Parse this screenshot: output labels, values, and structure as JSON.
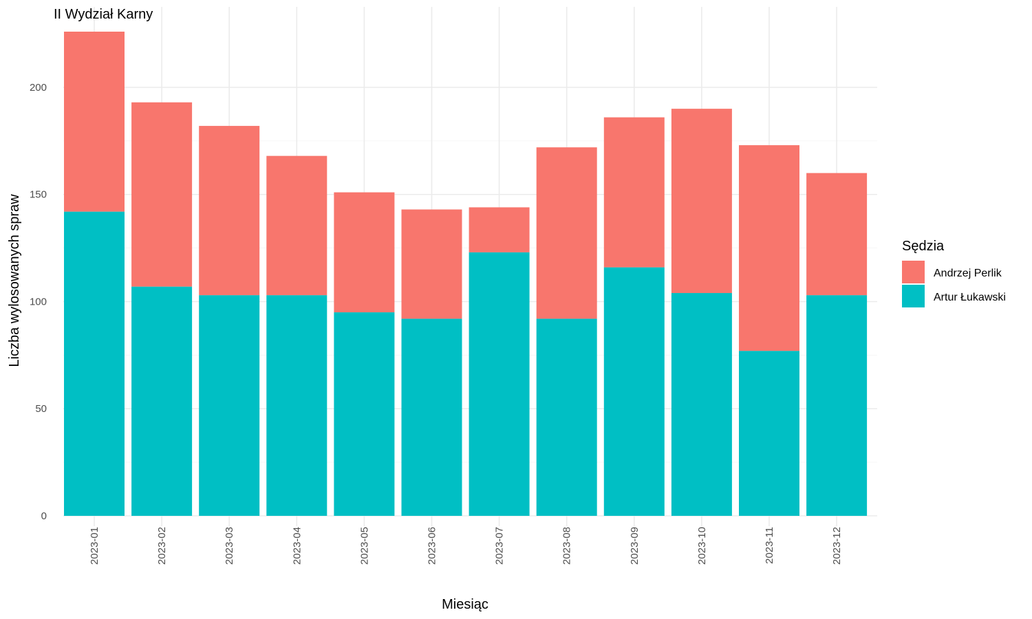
{
  "chart_data": {
    "type": "bar",
    "stacked": true,
    "title": "II Wydział Karny",
    "xlabel": "Miesiąc",
    "ylabel": "Liczba wylosowanych spraw",
    "ylim": [
      0,
      226
    ],
    "yticks": [
      0,
      50,
      100,
      150,
      200
    ],
    "grid": true,
    "legend": {
      "title": "Sędzia",
      "position": "right"
    },
    "categories": [
      "2023-01",
      "2023-02",
      "2023-03",
      "2023-04",
      "2023-05",
      "2023-06",
      "2023-07",
      "2023-08",
      "2023-09",
      "2023-10",
      "2023-11",
      "2023-12"
    ],
    "series": [
      {
        "name": "Artur Łukawski",
        "color": "#00BFC4",
        "values": [
          142,
          107,
          103,
          103,
          95,
          92,
          123,
          92,
          116,
          104,
          77,
          103
        ]
      },
      {
        "name": "Andrzej Perlik",
        "color": "#F8766D",
        "values": [
          84,
          86,
          79,
          65,
          56,
          51,
          21,
          80,
          70,
          86,
          96,
          57
        ]
      }
    ],
    "legend_order": [
      "Andrzej Perlik",
      "Artur Łukawski"
    ]
  }
}
